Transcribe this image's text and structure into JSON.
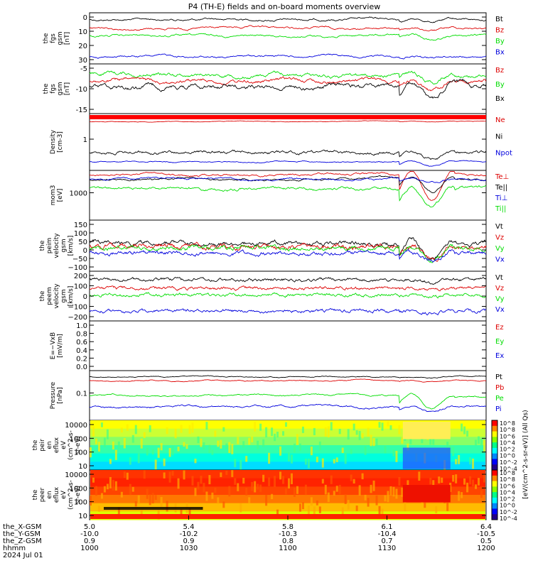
{
  "chart_data": {
    "type": "line",
    "title": "P4 (TH-E) fields and on-board moments overview",
    "colors": {
      "black": "#000000",
      "red": "#dd0000",
      "green": "#00dd00",
      "blue": "#0000dd"
    },
    "panels": [
      {
        "id": "fgs-gsm",
        "ylabel": [
          "the",
          "fgs",
          "gsm",
          "[nT]"
        ],
        "yticks": [
          "0",
          "10",
          "20",
          "30"
        ],
        "legend": [
          {
            "text": "Bt",
            "color": "black"
          },
          {
            "text": "Bz",
            "color": "red"
          },
          {
            "text": "By",
            "color": "green"
          },
          {
            "text": "Bx",
            "color": "blue"
          }
        ]
      },
      {
        "id": "fgs-gsm-zoom",
        "ylabel": [
          "the",
          "fgs",
          "gsm",
          "[nT]"
        ],
        "yticks": [
          "-5",
          "-10",
          "-15"
        ],
        "legend": [
          {
            "text": "Bz",
            "color": "red"
          },
          {
            "text": "By",
            "color": "green"
          },
          {
            "text": "Bx",
            "color": "black"
          }
        ]
      },
      {
        "id": "density",
        "ylabel": [
          "Density",
          "[cm-3]"
        ],
        "yticks": [
          "1"
        ],
        "legend": [
          {
            "text": "Ne",
            "color": "red"
          },
          {
            "text": "Ni",
            "color": "black"
          },
          {
            "text": "Npot",
            "color": "blue"
          }
        ]
      },
      {
        "id": "temperature",
        "ylabel": [
          "mom3",
          "[eV]"
        ],
        "yticks": [
          "1000"
        ],
        "legend": [
          {
            "text": "Te⊥",
            "color": "red"
          },
          {
            "text": "Te||",
            "color": "black"
          },
          {
            "text": "Ti⊥",
            "color": "blue"
          },
          {
            "text": "Ti||",
            "color": "green"
          }
        ]
      },
      {
        "id": "peim-velocity",
        "ylabel": [
          "the",
          "peim",
          "velocity",
          "gsm",
          "[km/s]"
        ],
        "yticks": [
          "150",
          "100",
          "50",
          "0",
          "−50",
          "−100"
        ],
        "legend": [
          {
            "text": "Vt",
            "color": "black"
          },
          {
            "text": "Vz",
            "color": "red"
          },
          {
            "text": "Vy",
            "color": "green"
          },
          {
            "text": "Vx",
            "color": "blue"
          }
        ]
      },
      {
        "id": "peem-velocity",
        "ylabel": [
          "the",
          "peem",
          "velocity",
          "gsm",
          "[km/s]"
        ],
        "yticks": [
          "200",
          "100",
          "0",
          "−100",
          "−200"
        ],
        "legend": [
          {
            "text": "Vt",
            "color": "black"
          },
          {
            "text": "Vz",
            "color": "red"
          },
          {
            "text": "Vy",
            "color": "green"
          },
          {
            "text": "Vx",
            "color": "blue"
          }
        ]
      },
      {
        "id": "efield",
        "ylabel": [
          "E=−VxB",
          "[mV/m]"
        ],
        "yticks": [
          "1.0",
          "0.8",
          "0.6",
          "0.4",
          "0.2",
          "0.0"
        ],
        "legend": [
          {
            "text": "Ez",
            "color": "red"
          },
          {
            "text": "Ey",
            "color": "green"
          },
          {
            "text": "Ex",
            "color": "blue"
          }
        ]
      },
      {
        "id": "pressure",
        "ylabel": [
          "Pressure",
          "[nPa]"
        ],
        "yticks": [
          "0.1"
        ],
        "legend": [
          {
            "text": "Pt",
            "color": "black"
          },
          {
            "text": "Pb",
            "color": "red"
          },
          {
            "text": "Pe",
            "color": "green"
          },
          {
            "text": "Pi",
            "color": "blue"
          }
        ]
      },
      {
        "id": "peir-spec",
        "ylabel": [
          "the",
          "peir",
          "en",
          "eflux",
          "eV",
          "(cm^2-s-",
          "sr-eV)"
        ],
        "yticks": [
          "10000",
          "1000",
          "100",
          "10"
        ]
      },
      {
        "id": "peer-spec",
        "ylabel": [
          "the",
          "peer",
          "en",
          "eflux",
          "eV",
          "(cm^2-s-",
          "sr-eV)"
        ],
        "yticks": [
          "10000",
          "1000",
          "100",
          "10"
        ]
      }
    ],
    "colorbar": {
      "label": "[eV/(cm^2-s-sr-eV)] (All Qs)",
      "ticks_top": [
        "10^8",
        "10^8",
        "10^6",
        "10^4",
        "10^2",
        "10^0",
        "10^-2",
        "10^-4"
      ],
      "ticks_bottom": [
        "10^8",
        "10^8",
        "10^6",
        "10^4",
        "10^2",
        "10^0",
        "10^-2",
        "10^-4"
      ]
    },
    "xaxis": {
      "rows": [
        {
          "label": "the_X-GSM",
          "values": [
            "5.0",
            "5.4",
            "5.8",
            "6.1",
            "6.4"
          ]
        },
        {
          "label": "the_Y-GSM",
          "values": [
            "-10.0",
            "-10.2",
            "-10.3",
            "-10.4",
            "-10.5"
          ]
        },
        {
          "label": "the_Z-GSM",
          "values": [
            "0.9",
            "0.9",
            "0.8",
            "0.7",
            "0.5"
          ]
        },
        {
          "label": "hhmm",
          "values": [
            "1000",
            "1030",
            "1100",
            "1130",
            "1200"
          ]
        }
      ],
      "date": "2024 Jul 01"
    }
  }
}
